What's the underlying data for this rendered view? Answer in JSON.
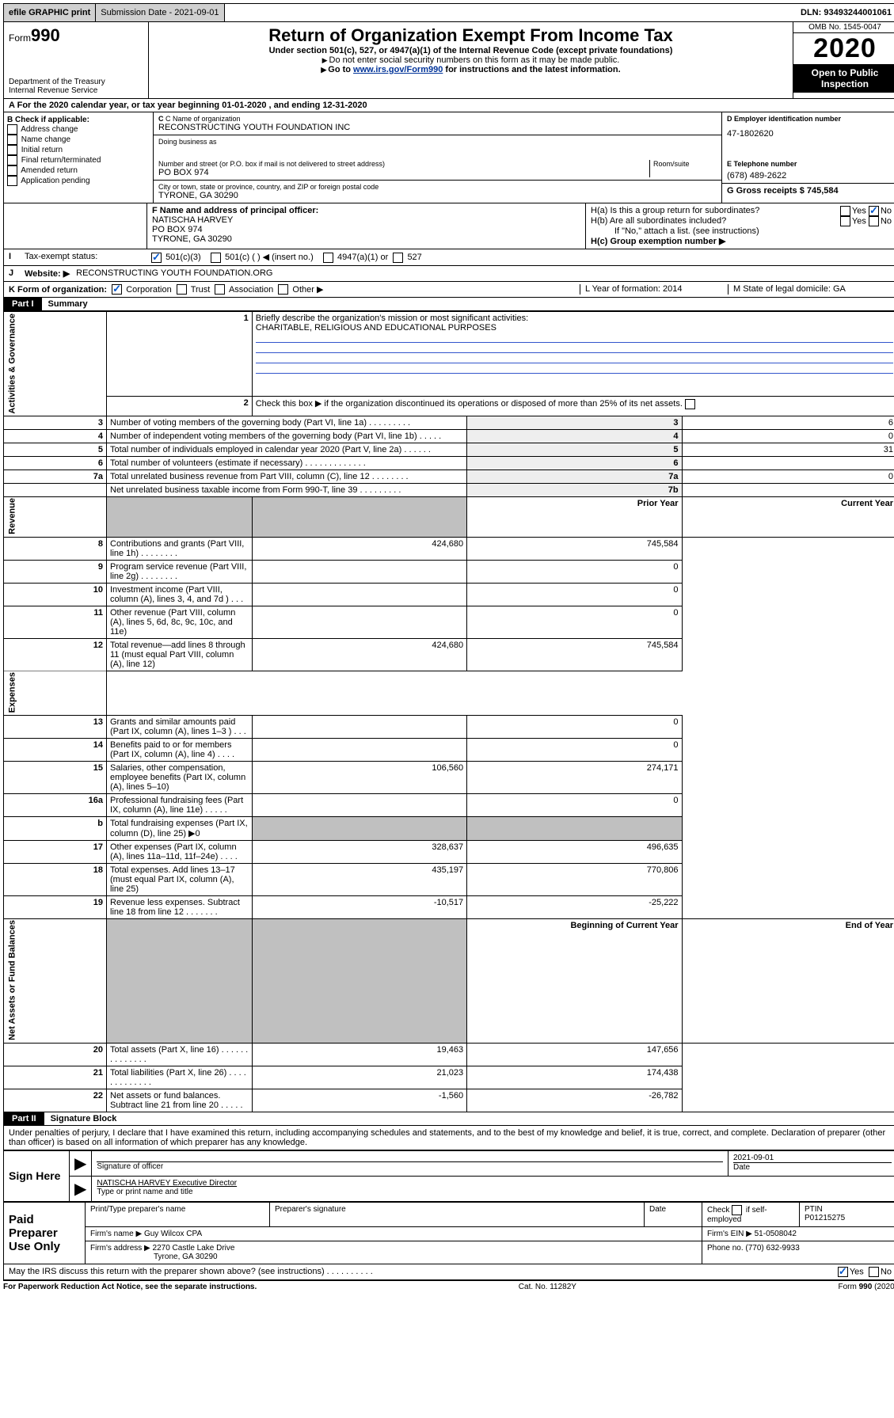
{
  "topbar": {
    "efile": "efile GRAPHIC print",
    "submission_label": "Submission Date - 2021-09-01",
    "dln_label": "DLN: 93493244001061"
  },
  "header": {
    "form_prefix": "Form",
    "form_number": "990",
    "dept": "Department of the Treasury\nInternal Revenue Service",
    "title": "Return of Organization Exempt From Income Tax",
    "subtitle": "Under section 501(c), 527, or 4947(a)(1) of the Internal Revenue Code (except private foundations)",
    "note1": "Do not enter social security numbers on this form as it may be made public.",
    "note2_prefix": "Go to ",
    "note2_link": "www.irs.gov/Form990",
    "note2_suffix": " for instructions and the latest information.",
    "omb": "OMB No. 1545-0047",
    "year": "2020",
    "open_public": "Open to Public Inspection"
  },
  "rowA": "For the 2020 calendar year, or tax year beginning 01-01-2020   , and ending 12-31-2020",
  "boxB": {
    "heading": "B Check if applicable:",
    "items": [
      "Address change",
      "Name change",
      "Initial return",
      "Final return/terminated",
      "Amended return",
      "Application pending"
    ]
  },
  "boxC": {
    "name_label": "C Name of organization",
    "name": "RECONSTRUCTING YOUTH FOUNDATION INC",
    "dba_label": "Doing business as",
    "addr_label": "Number and street (or P.O. box if mail is not delivered to street address)",
    "room_label": "Room/suite",
    "addr": "PO BOX 974",
    "city_label": "City or town, state or province, country, and ZIP or foreign postal code",
    "city": "TYRONE, GA  30290"
  },
  "boxD": {
    "label": "D Employer identification number",
    "value": "47-1802620"
  },
  "boxE": {
    "label": "E Telephone number",
    "value": "(678) 489-2622"
  },
  "boxG": {
    "label": "G Gross receipts $ 745,584"
  },
  "boxF": {
    "label": "F  Name and address of principal officer:",
    "name": "NATISCHA HARVEY",
    "addr": "PO BOX 974",
    "city": "TYRONE, GA  30290"
  },
  "boxH": {
    "ha": "H(a)  Is this a group return for subordinates?",
    "hb": "H(b)  Are all subordinates included?",
    "hb_note": "If \"No,\" attach a list. (see instructions)",
    "hc": "H(c)  Group exemption number ▶",
    "yes": "Yes",
    "no": "No"
  },
  "rowI": {
    "label": "Tax-exempt status:",
    "opts": [
      "501(c)(3)",
      "501(c) (  ) ◀ (insert no.)",
      "4947(a)(1) or",
      "527"
    ]
  },
  "rowJ": {
    "label": "Website: ▶",
    "value": "RECONSTRUCTING YOUTH FOUNDATION.ORG"
  },
  "rowK": {
    "label": "K Form of organization:",
    "opts": [
      "Corporation",
      "Trust",
      "Association",
      "Other ▶"
    ]
  },
  "rowL": {
    "label": "L Year of formation: 2014"
  },
  "rowM": {
    "label": "M State of legal domicile: GA"
  },
  "part1": {
    "header": "Part I",
    "title": "Summary"
  },
  "summary": {
    "q1_label": "Briefly describe the organization's mission or most significant activities:",
    "q1_value": "CHARITABLE, RELIGIOUS AND EDUCATIONAL PURPOSES",
    "q2": "Check this box ▶       if the organization discontinued its operations or disposed of more than 25% of its net assets.",
    "rows_top": [
      {
        "n": "3",
        "t": "Number of voting members of the governing body (Part VI, line 1a)  .  .  .  .  .  .  .  .  .",
        "box": "3",
        "v": "6"
      },
      {
        "n": "4",
        "t": "Number of independent voting members of the governing body (Part VI, line 1b)  .  .  .  .  .",
        "box": "4",
        "v": "0"
      },
      {
        "n": "5",
        "t": "Total number of individuals employed in calendar year 2020 (Part V, line 2a)  .  .  .  .  .  .",
        "box": "5",
        "v": "31"
      },
      {
        "n": "6",
        "t": "Total number of volunteers (estimate if necessary)  .  .  .  .  .  .  .  .  .  .  .  .  .",
        "box": "6",
        "v": ""
      },
      {
        "n": "7a",
        "t": "Total unrelated business revenue from Part VIII, column (C), line 12  .  .  .  .  .  .  .  .",
        "box": "7a",
        "v": "0"
      },
      {
        "n": "",
        "t": "Net unrelated business taxable income from Form 990-T, line 39  .  .  .  .  .  .  .  .  .",
        "box": "7b",
        "v": ""
      }
    ],
    "col_headers": {
      "prior": "Prior Year",
      "current": "Current Year",
      "begin": "Beginning of Current Year",
      "end": "End of Year"
    },
    "revenue": [
      {
        "n": "8",
        "t": "Contributions and grants (Part VIII, line 1h)  .  .  .  .  .  .  .  .",
        "p": "424,680",
        "c": "745,584"
      },
      {
        "n": "9",
        "t": "Program service revenue (Part VIII, line 2g)  .  .  .  .  .  .  .  .",
        "p": "",
        "c": "0"
      },
      {
        "n": "10",
        "t": "Investment income (Part VIII, column (A), lines 3, 4, and 7d )  .  .  .",
        "p": "",
        "c": "0"
      },
      {
        "n": "11",
        "t": "Other revenue (Part VIII, column (A), lines 5, 6d, 8c, 9c, 10c, and 11e)",
        "p": "",
        "c": "0"
      },
      {
        "n": "12",
        "t": "Total revenue—add lines 8 through 11 (must equal Part VIII, column (A), line 12)",
        "p": "424,680",
        "c": "745,584"
      }
    ],
    "expenses": [
      {
        "n": "13",
        "t": "Grants and similar amounts paid (Part IX, column (A), lines 1–3 )  .  .  .",
        "p": "",
        "c": "0"
      },
      {
        "n": "14",
        "t": "Benefits paid to or for members (Part IX, column (A), line 4)  .  .  .  .",
        "p": "",
        "c": "0"
      },
      {
        "n": "15",
        "t": "Salaries, other compensation, employee benefits (Part IX, column (A), lines 5–10)",
        "p": "106,560",
        "c": "274,171"
      },
      {
        "n": "16a",
        "t": "Professional fundraising fees (Part IX, column (A), line 11e)  .  .  .  .  .",
        "p": "",
        "c": "0"
      },
      {
        "n": "b",
        "t": "Total fundraising expenses (Part IX, column (D), line 25) ▶0",
        "p": "shade",
        "c": "shade"
      },
      {
        "n": "17",
        "t": "Other expenses (Part IX, column (A), lines 11a–11d, 11f–24e)  .  .  .  .",
        "p": "328,637",
        "c": "496,635"
      },
      {
        "n": "18",
        "t": "Total expenses. Add lines 13–17 (must equal Part IX, column (A), line 25)",
        "p": "435,197",
        "c": "770,806"
      },
      {
        "n": "19",
        "t": "Revenue less expenses. Subtract line 18 from line 12  .  .  .  .  .  .  .",
        "p": "-10,517",
        "c": "-25,222"
      }
    ],
    "netassets": [
      {
        "n": "20",
        "t": "Total assets (Part X, line 16)  .  .  .  .  .  .  .  .  .  .  .  .  .  .",
        "p": "19,463",
        "c": "147,656"
      },
      {
        "n": "21",
        "t": "Total liabilities (Part X, line 26)  .  .  .  .  .  .  .  .  .  .  .  .  .",
        "p": "21,023",
        "c": "174,438"
      },
      {
        "n": "22",
        "t": "Net assets or fund balances. Subtract line 21 from line 20  .  .  .  .  .",
        "p": "-1,560",
        "c": "-26,782"
      }
    ],
    "side_labels": {
      "gov": "Activities & Governance",
      "rev": "Revenue",
      "exp": "Expenses",
      "net": "Net Assets or Fund Balances"
    }
  },
  "part2": {
    "header": "Part II",
    "title": "Signature Block"
  },
  "perjury": "Under penalties of perjury, I declare that I have examined this return, including accompanying schedules and statements, and to the best of my knowledge and belief, it is true, correct, and complete. Declaration of preparer (other than officer) is based on all information of which preparer has any knowledge.",
  "sign": {
    "sign_here": "Sign Here",
    "sig_officer": "Signature of officer",
    "date": "2021-09-01",
    "date_label": "Date",
    "name_title": "NATISCHA HARVEY  Executive Director",
    "type_label": "Type or print name and title"
  },
  "paid": {
    "label": "Paid Preparer Use Only",
    "print_name_label": "Print/Type preparer's name",
    "sig_label": "Preparer's signature",
    "date_label": "Date",
    "check_label": "Check        if self-employed",
    "ptin_label": "PTIN",
    "ptin": "P01215275",
    "firm_name_label": "Firm's name   ▶",
    "firm_name": "Guy Wilcox CPA",
    "firm_ein_label": "Firm's EIN ▶",
    "firm_ein": "51-0508042",
    "firm_addr_label": "Firm's address ▶",
    "firm_addr": "2270 Castle Lake Drive",
    "firm_city": "Tyrone, GA  30290",
    "phone_label": "Phone no.",
    "phone": "(770) 632-9933"
  },
  "discuss": "May the IRS discuss this return with the preparer shown above? (see instructions)  .  .  .  .  .  .  .  .  .  .",
  "footer": {
    "left": "For Paperwork Reduction Act Notice, see the separate instructions.",
    "mid": "Cat. No. 11282Y",
    "right": "Form 990 (2020)"
  }
}
